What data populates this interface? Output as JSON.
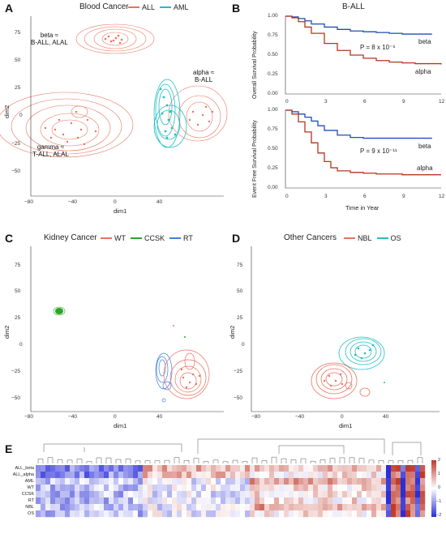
{
  "panels": {
    "A": {
      "letter": "A",
      "title": "Blood Cancer",
      "legend": [
        {
          "label": "ALL",
          "color": "#e8735f"
        },
        {
          "label": "AML",
          "color": "#22bfc4"
        }
      ],
      "xlabel": "dim1",
      "ylabel": "dim2",
      "xticks": [
        "−80",
        "−40",
        "0",
        "40"
      ],
      "yticks": [
        "75",
        "50",
        "25",
        "0",
        "−25",
        "−50"
      ],
      "annotations": {
        "beta": [
          "beta ≈",
          "B-ALL, ALAL"
        ],
        "alpha": [
          "alpha ≈",
          "B-ALL"
        ],
        "gamma": [
          "gamma ≈",
          "T-ALL, ALAL"
        ]
      }
    },
    "B": {
      "letter": "B",
      "title": "B-ALL",
      "top_ylabel": "Overall Survival Probability",
      "bottom_ylabel": "Event Free Survival Probability",
      "xlabel": "Time in Year",
      "xticks": [
        "0",
        "3",
        "6",
        "9",
        "12"
      ],
      "yticks": [
        "1.00",
        "0.75",
        "0.50",
        "0.25",
        "0.00"
      ],
      "top_p": "P = 8 x 10⁻⁶",
      "bottom_p": "P = 9 x 10⁻¹¹",
      "series_labels": {
        "beta": "beta",
        "alpha": "alpha"
      },
      "colors": {
        "beta": "#1f4fb4",
        "alpha": "#b5361e"
      }
    },
    "C": {
      "letter": "C",
      "title": "Kidney Cancer",
      "legend": [
        {
          "label": "WT",
          "color": "#e8735f"
        },
        {
          "label": "CCSK",
          "color": "#2aa52a"
        },
        {
          "label": "RT",
          "color": "#3f7fe0"
        }
      ],
      "xlabel": "dim1",
      "ylabel": "dim2",
      "xticks": [
        "−80",
        "−40",
        "0",
        "40"
      ],
      "yticks": [
        "75",
        "50",
        "25",
        "0",
        "−25",
        "−50"
      ]
    },
    "D": {
      "letter": "D",
      "title": "Other Cancers",
      "legend": [
        {
          "label": "NBL",
          "color": "#e8735f"
        },
        {
          "label": "OS",
          "color": "#22bfc4"
        }
      ],
      "xlabel": "dim1",
      "ylabel": "dim2",
      "xticks": [
        "−80",
        "−40",
        "0",
        "40"
      ],
      "yticks": [
        "75",
        "50",
        "25",
        "0",
        "−25",
        "−50"
      ]
    },
    "E": {
      "letter": "E",
      "rows": [
        "ALL_beta",
        "ALL_alpha",
        "AML",
        "WT",
        "CCSK",
        "RT",
        "NBL",
        "OS"
      ],
      "scale_ticks": [
        "2",
        "1",
        "0",
        "−1",
        "−2"
      ],
      "scale_colors": {
        "high": "#c0392b",
        "mid": "#ffffff",
        "low": "#2a2fd6"
      }
    }
  },
  "chart_data": [
    {
      "type": "line",
      "title": "B-ALL",
      "ylabel": "Overall Survival Probability",
      "xlabel": "",
      "ylim": [
        0,
        1
      ],
      "xlim": [
        0,
        12
      ],
      "series": [
        {
          "name": "beta",
          "x": [
            0,
            0.5,
            1,
            1.5,
            2,
            3,
            4,
            5,
            6,
            7,
            8,
            9,
            10,
            11.3
          ],
          "values": [
            1.0,
            0.99,
            0.97,
            0.94,
            0.9,
            0.86,
            0.83,
            0.81,
            0.8,
            0.79,
            0.78,
            0.77,
            0.77,
            0.77
          ]
        },
        {
          "name": "alpha",
          "x": [
            0,
            0.5,
            1,
            1.5,
            2,
            3,
            4,
            5,
            6,
            7,
            8,
            9,
            10,
            11,
            12
          ],
          "values": [
            1.0,
            0.98,
            0.93,
            0.86,
            0.78,
            0.65,
            0.56,
            0.5,
            0.46,
            0.43,
            0.41,
            0.4,
            0.39,
            0.39,
            0.38
          ]
        }
      ]
    },
    {
      "type": "line",
      "title": "",
      "ylabel": "Event Free Survival Probability",
      "xlabel": "Time in Year",
      "ylim": [
        0,
        1
      ],
      "xlim": [
        0,
        12
      ],
      "series": [
        {
          "name": "beta",
          "x": [
            0,
            0.5,
            1,
            1.5,
            2,
            2.5,
            3,
            4,
            5,
            6,
            7,
            8,
            9,
            10,
            11.3
          ],
          "values": [
            1.0,
            0.98,
            0.95,
            0.91,
            0.86,
            0.8,
            0.74,
            0.68,
            0.65,
            0.64,
            0.64,
            0.64,
            0.64,
            0.64,
            0.64
          ]
        },
        {
          "name": "alpha",
          "x": [
            0,
            0.5,
            1,
            1.5,
            2,
            2.5,
            3,
            3.5,
            4,
            5,
            6,
            7,
            8,
            9,
            10,
            11,
            12
          ],
          "values": [
            1.0,
            0.95,
            0.85,
            0.72,
            0.58,
            0.45,
            0.34,
            0.26,
            0.22,
            0.2,
            0.19,
            0.18,
            0.18,
            0.17,
            0.17,
            0.17,
            0.17
          ]
        }
      ]
    }
  ]
}
